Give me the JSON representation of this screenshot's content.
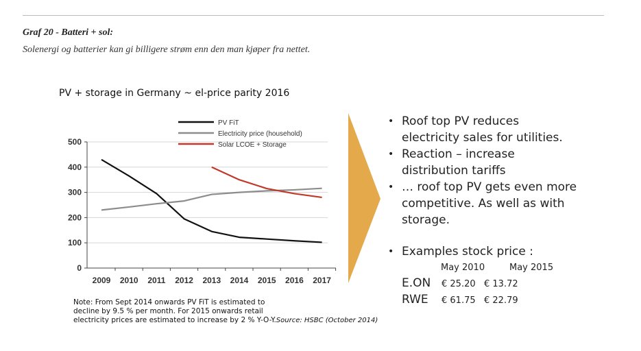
{
  "header": {
    "title": "Graf 20 - Batteri + sol:",
    "subtitle": "Solenergi og batterier kan gi billigere strøm enn den man kjøper fra nettet."
  },
  "chart_data": {
    "type": "line",
    "title": "PV + storage  in Germany  ~ el-price parity 2016",
    "categories": [
      "2009",
      "2010",
      "2011",
      "2012",
      "2013",
      "2014",
      "2015",
      "2016",
      "2017"
    ],
    "yticks": [
      0,
      100,
      200,
      300,
      400,
      500
    ],
    "ylim": [
      0,
      500
    ],
    "grid": true,
    "legend": "top",
    "series": [
      {
        "name": "PV FiT",
        "color": "#111111",
        "values": [
          430,
          365,
          295,
          195,
          145,
          122,
          115,
          108,
          102
        ]
      },
      {
        "name": "Electricity price (household)",
        "color": "#8c8c8c",
        "values": [
          230,
          242,
          255,
          266,
          292,
          300,
          306,
          310,
          316
        ]
      },
      {
        "name": "Solar LCOE + Storage",
        "color": "#c0392b",
        "values": [
          null,
          null,
          null,
          null,
          400,
          350,
          315,
          295,
          280
        ]
      }
    ]
  },
  "note": {
    "text": [
      "Note: From Sept 2014 onwards PV FiT is estimated to",
      "decline by 9.5 % per month. For 2015 onwards retail",
      "electricity prices are estimated to increase by 2 % Y-O-Y."
    ],
    "source": "Source: HSBC (October 2014)"
  },
  "arrow_color": "#e3a94b",
  "bullets": [
    [
      "Roof top PV reduces",
      "electricity sales for utilities."
    ],
    [
      "Reaction – increase",
      "distribution tariffs"
    ],
    [
      "… roof top PV gets even more",
      "competitive. As well as with",
      "storage."
    ],
    [
      "Examples stock price :"
    ]
  ],
  "stocks": {
    "headers": [
      "May 2010",
      "May 2015"
    ],
    "rows": [
      {
        "name": "E.ON",
        "v2010": "€ 25.20",
        "v2015": "€ 13.72"
      },
      {
        "name": "RWE",
        "v2010": "€ 61.75",
        "v2015": "€ 22.79"
      }
    ]
  }
}
